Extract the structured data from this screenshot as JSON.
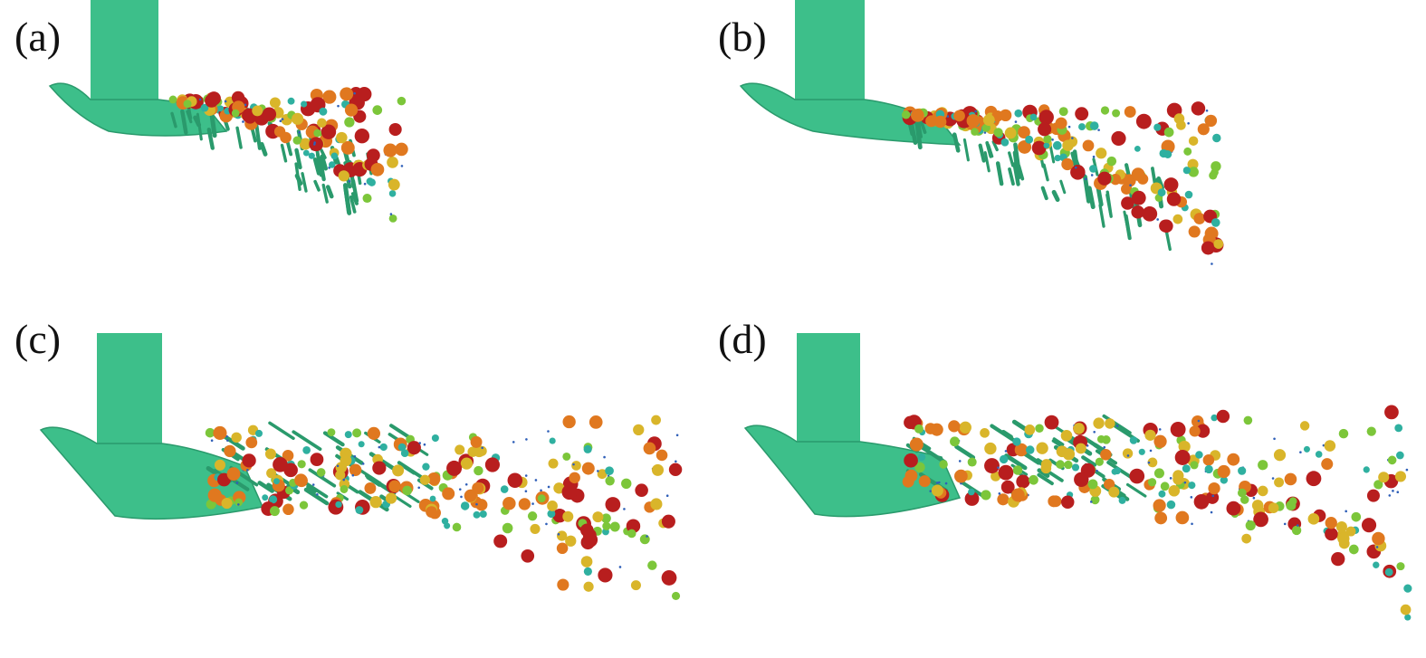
{
  "panels": [
    {
      "label": "(a)"
    },
    {
      "label": "(b)"
    },
    {
      "label": "(c)"
    },
    {
      "label": "(d)"
    }
  ],
  "colors": {
    "liquid": "#3dbf8a",
    "liquid_dark": "#2a9a6c",
    "droplet_scale": [
      "#2f5fb8",
      "#2fb0a0",
      "#7cc63a",
      "#d9b52a",
      "#e0781f",
      "#b81e1e"
    ]
  }
}
